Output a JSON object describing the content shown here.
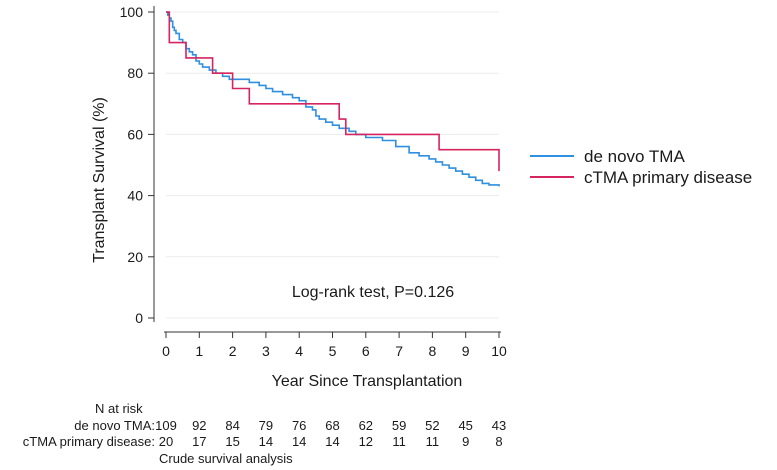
{
  "chart_data": {
    "type": "line",
    "subtype": "kaplan-meier",
    "ylabel": "Transplant Survival (%)",
    "xlabel": "Year Since Transplantation",
    "xlim": [
      0,
      10
    ],
    "ylim": [
      0,
      100
    ],
    "x_ticks": [
      "0",
      "1",
      "2",
      "3",
      "4",
      "5",
      "6",
      "7",
      "8",
      "9",
      "10"
    ],
    "y_ticks": [
      "0",
      "20",
      "40",
      "60",
      "80",
      "100"
    ],
    "grid": true,
    "legend_position": "right",
    "annotation": "Log-rank test, P=0.126",
    "series": [
      {
        "name": "de novo TMA",
        "color": "#2f8fe0",
        "x": [
          0,
          0.05,
          0.1,
          0.15,
          0.2,
          0.25,
          0.3,
          0.4,
          0.5,
          0.6,
          0.7,
          0.8,
          0.9,
          1.0,
          1.1,
          1.3,
          1.5,
          1.7,
          1.9,
          2.1,
          2.5,
          2.8,
          3.0,
          3.2,
          3.5,
          3.8,
          4.0,
          4.2,
          4.4,
          4.5,
          4.6,
          4.8,
          5.0,
          5.2,
          5.5,
          5.7,
          6.0,
          6.5,
          6.9,
          7.3,
          7.6,
          7.9,
          8.1,
          8.3,
          8.5,
          8.7,
          8.9,
          9.1,
          9.3,
          9.5,
          9.7,
          10.0
        ],
        "y": [
          100,
          99,
          98,
          97,
          95,
          94,
          93,
          91,
          90,
          88,
          87,
          86,
          84,
          83,
          82,
          81,
          80,
          79,
          78,
          78,
          77,
          76,
          75,
          74,
          73,
          72,
          71,
          69,
          68,
          66,
          65,
          64,
          63,
          62,
          61,
          60,
          59,
          58,
          56,
          54,
          53,
          52,
          51,
          50,
          49,
          48,
          47,
          46,
          45,
          44,
          43.5,
          43
        ]
      },
      {
        "name": "cTMA primary disease",
        "color": "#d6245e",
        "x": [
          0,
          0.1,
          0.6,
          1.4,
          2.0,
          2.5,
          4.3,
          5.2,
          5.4,
          6.5,
          8.2,
          9.95,
          10.0
        ],
        "y": [
          100,
          90,
          85,
          80,
          75,
          70,
          70,
          65,
          60,
          60,
          55,
          55,
          48
        ]
      }
    ],
    "risk_table": {
      "title": "N at risk",
      "rows": [
        {
          "label": "de novo TMA:",
          "values": [
            "109",
            "92",
            "84",
            "79",
            "76",
            "68",
            "62",
            "59",
            "52",
            "45",
            "43"
          ]
        },
        {
          "label": "cTMA primary disease:",
          "values": [
            "20",
            "17",
            "15",
            "14",
            "14",
            "14",
            "12",
            "11",
            "11",
            "9",
            "8"
          ]
        }
      ]
    },
    "footnote": "Crude survival analysis"
  }
}
